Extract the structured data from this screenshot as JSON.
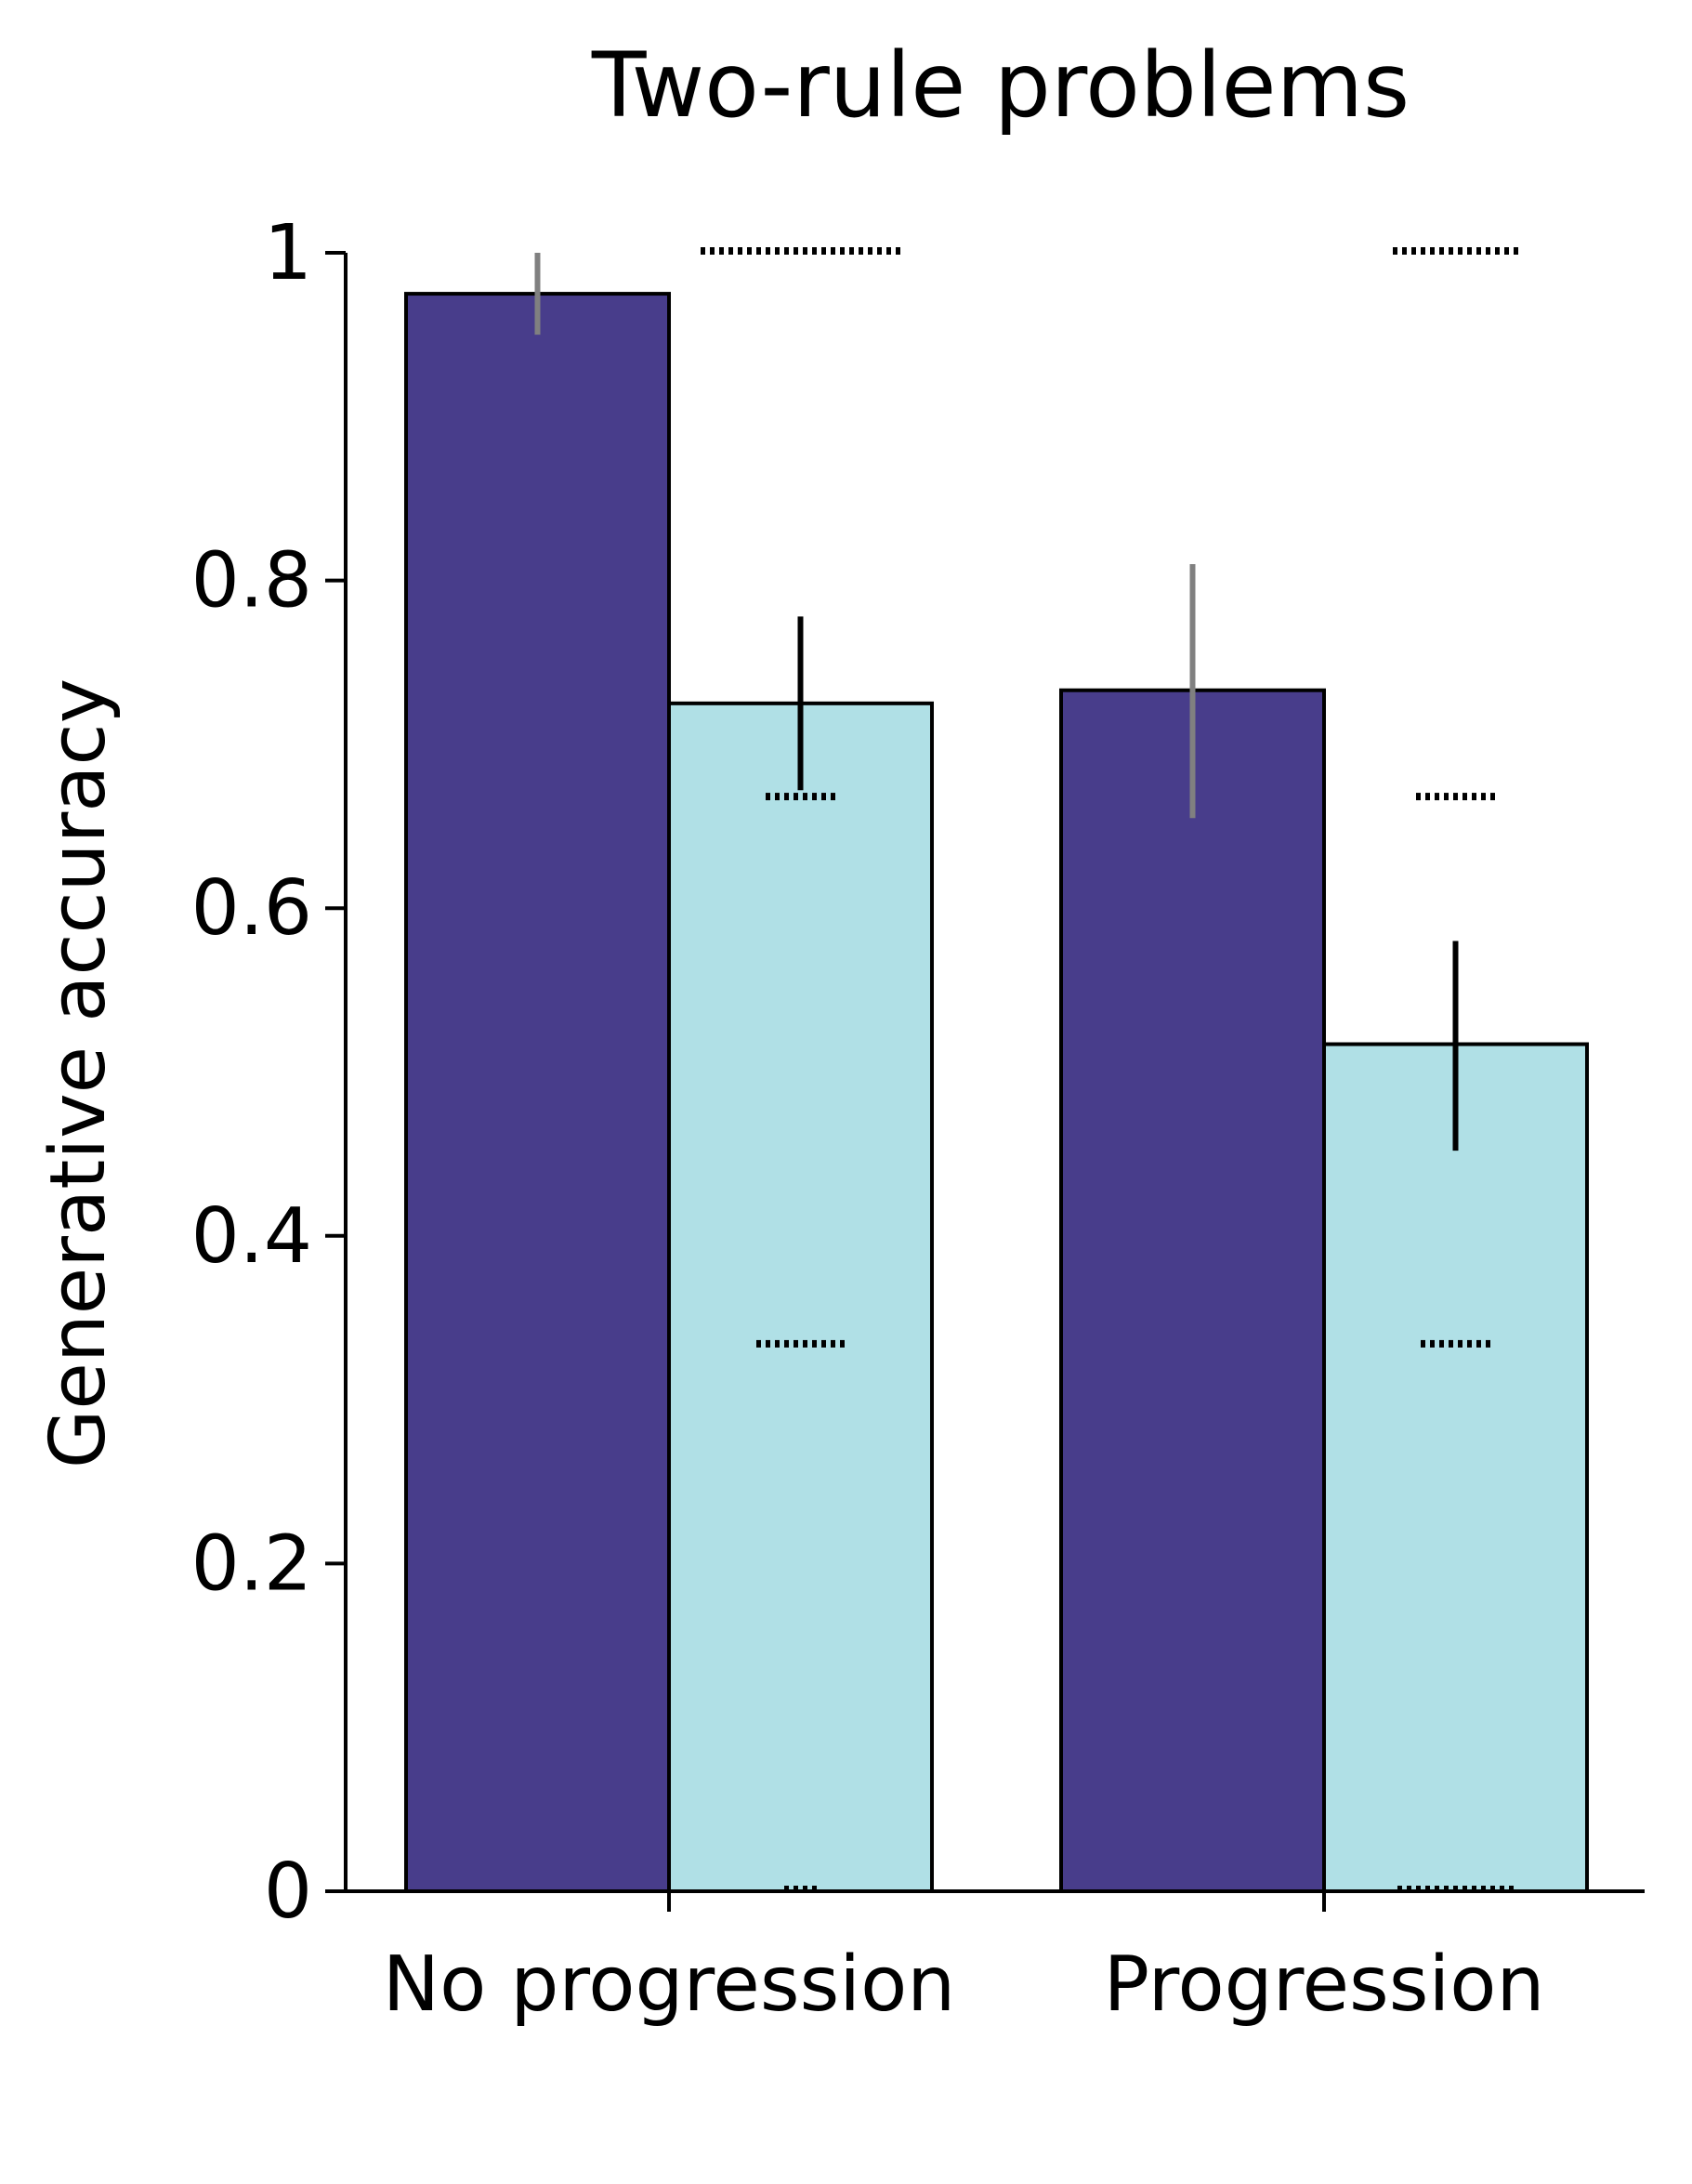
{
  "chart_data": {
    "type": "bar",
    "title": "Two-rule problems",
    "ylabel": "Generative accuracy",
    "xlabel": "",
    "ylim": [
      0,
      1
    ],
    "yticks": [
      0,
      0.2,
      0.4,
      0.6,
      0.8,
      1
    ],
    "ytick_labels": [
      "0",
      "0.2",
      "0.4",
      "0.6",
      "0.8",
      "1"
    ],
    "categories": [
      "No progression",
      "Progression"
    ],
    "grid": false,
    "series": [
      {
        "values": [
          0.975,
          0.733
        ],
        "error_low": [
          0.95,
          0.655
        ],
        "error_high": [
          1.0,
          0.81
        ],
        "color": "#483d8b",
        "error_color": "#808080"
      },
      {
        "values": [
          0.725,
          0.517
        ],
        "error_low": [
          0.672,
          0.452
        ],
        "error_high": [
          0.778,
          0.58
        ],
        "color": "#b0e0e6",
        "error_color": "#000000"
      }
    ],
    "dot_points": [
      {
        "category": 0,
        "y": 1.0,
        "count": 22
      },
      {
        "category": 0,
        "y": 0.667,
        "count": 8
      },
      {
        "category": 0,
        "y": 0.333,
        "count": 10
      },
      {
        "category": 0,
        "y": 0.0,
        "count": 4
      },
      {
        "category": 1,
        "y": 1.0,
        "count": 14
      },
      {
        "category": 1,
        "y": 0.667,
        "count": 9
      },
      {
        "category": 1,
        "y": 0.333,
        "count": 8
      },
      {
        "category": 1,
        "y": 0.0,
        "count": 13
      }
    ]
  }
}
